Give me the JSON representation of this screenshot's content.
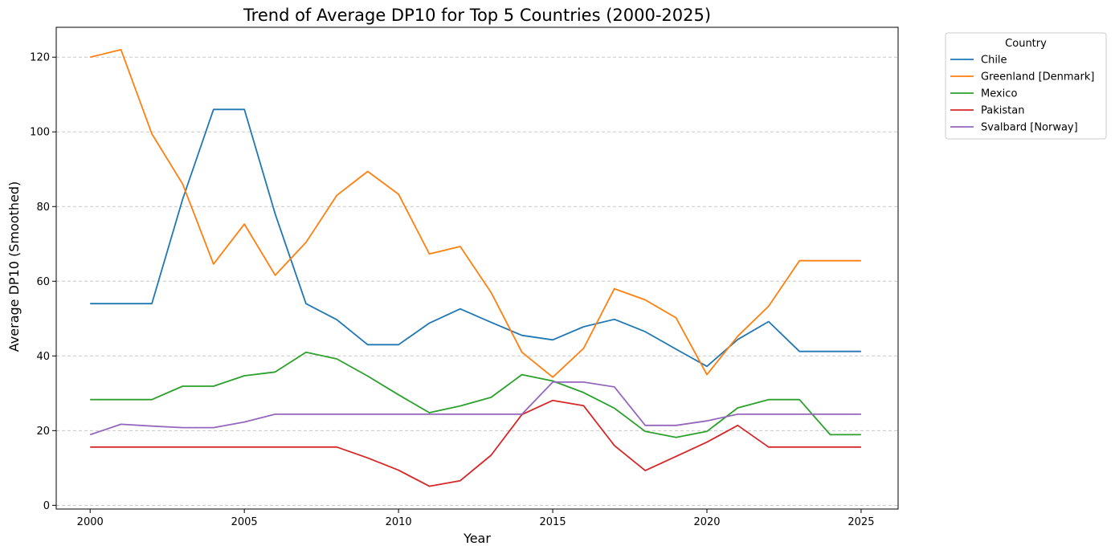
{
  "chart_data": {
    "type": "line",
    "title": "Trend of Average DP10 for Top 5 Countries (2000-2025)",
    "xlabel": "Year",
    "ylabel": "Average DP10 (Smoothed)",
    "xlim": [
      1998.9,
      2026.2
    ],
    "ylim": [
      -1,
      128
    ],
    "x_ticks": [
      2000,
      2005,
      2010,
      2015,
      2020,
      2025
    ],
    "y_ticks": [
      0,
      20,
      40,
      60,
      80,
      100,
      120
    ],
    "grid": "y-dashed",
    "legend_title": "Country",
    "legend_position": "outside-top-right",
    "x": [
      2000,
      2001,
      2002,
      2003,
      2004,
      2005,
      2006,
      2007,
      2008,
      2009,
      2010,
      2011,
      2012,
      2013,
      2014,
      2015,
      2016,
      2017,
      2018,
      2019,
      2020,
      2021,
      2022,
      2023,
      2024,
      2025
    ],
    "series": [
      {
        "name": "Chile",
        "color": "#1f77b4",
        "values": [
          54,
          54,
          54,
          82,
          106,
          106,
          78,
          54,
          49.7,
          43,
          43,
          48.8,
          52.6,
          49,
          45.5,
          44.3,
          47.8,
          49.8,
          46.5,
          41.8,
          37.2,
          44.4,
          49.2,
          41.2,
          41.2,
          41.2
        ]
      },
      {
        "name": "Greenland [Denmark]",
        "color": "#ff7f0e",
        "values": [
          120,
          122,
          99.5,
          86,
          64.6,
          75.3,
          61.6,
          70.4,
          83,
          89.4,
          83.3,
          67.3,
          69.3,
          57,
          41,
          34.3,
          42,
          58,
          55,
          50.2,
          35,
          45.3,
          53.3,
          65.5,
          65.5,
          65.5
        ]
      },
      {
        "name": "Mexico",
        "color": "#2ca02c",
        "values": [
          28.3,
          28.3,
          28.3,
          31.9,
          31.9,
          34.7,
          35.7,
          41,
          39.2,
          34.6,
          29.6,
          24.8,
          26.6,
          28.9,
          35,
          33.3,
          30.2,
          26,
          19.8,
          18.2,
          19.8,
          26.1,
          28.3,
          28.3,
          18.9,
          18.9
        ]
      },
      {
        "name": "Pakistan",
        "color": "#d62728",
        "values": [
          15.6,
          15.6,
          15.6,
          15.6,
          15.6,
          15.6,
          15.6,
          15.6,
          15.6,
          12.7,
          9.4,
          5.1,
          6.6,
          13.4,
          24.3,
          28.1,
          26.7,
          16,
          9.3,
          13.1,
          16.9,
          21.4,
          15.6,
          15.6,
          15.6,
          15.6
        ]
      },
      {
        "name": "Svalbard [Norway]",
        "color": "#9467bd",
        "values": [
          18.9,
          21.7,
          21.2,
          20.8,
          20.8,
          22.3,
          24.4,
          24.4,
          24.4,
          24.4,
          24.4,
          24.4,
          24.4,
          24.4,
          24.4,
          33,
          33,
          31.7,
          21.4,
          21.4,
          22.6,
          24.4,
          24.4,
          24.4,
          24.4,
          24.4
        ]
      }
    ]
  }
}
